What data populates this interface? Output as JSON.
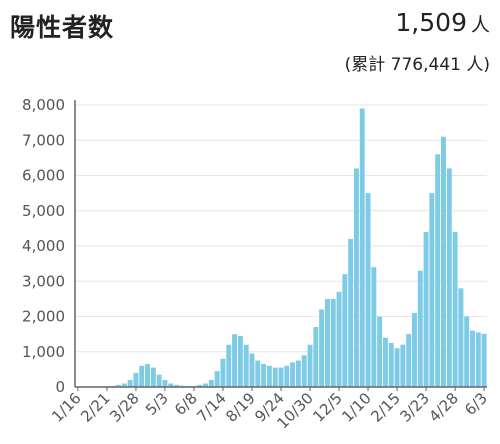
{
  "header": {
    "title": "陽性者数",
    "today_value": "1,509",
    "today_unit": "人",
    "cumulative": "(累計 776,441 人)"
  },
  "colors": {
    "bar": "#7ecbe6",
    "axis": "#666666",
    "grid": "#e6e6e6"
  },
  "chart_data": {
    "type": "bar",
    "title": "陽性者数",
    "xlabel": "",
    "ylabel": "",
    "ylim": [
      0,
      8000
    ],
    "grid": true,
    "yticks": [
      0,
      1000,
      2000,
      3000,
      4000,
      5000,
      6000,
      7000,
      8000
    ],
    "ytick_labels": [
      "0",
      "1,000",
      "2,000",
      "3,000",
      "4,000",
      "5,000",
      "6,000",
      "7,000",
      "8,000"
    ],
    "xtick_labels": [
      "1/16",
      "2/21",
      "3/28",
      "5/3",
      "6/8",
      "7/14",
      "8/19",
      "9/24",
      "10/30",
      "12/5",
      "1/10",
      "2/15",
      "3/23",
      "4/28",
      "6/3"
    ],
    "xtick_week_index": [
      0,
      5,
      10,
      15,
      20,
      25,
      30,
      35,
      40,
      45,
      50,
      55,
      60,
      65,
      70
    ],
    "period_start": "2020/1/16",
    "series": [
      {
        "name": "陽性者数",
        "bar_unit": "week",
        "values": [
          0,
          0,
          0,
          0,
          10,
          20,
          30,
          60,
          100,
          200,
          400,
          600,
          650,
          550,
          350,
          200,
          100,
          60,
          40,
          30,
          30,
          60,
          100,
          200,
          450,
          800,
          1200,
          1500,
          1450,
          1200,
          950,
          750,
          650,
          600,
          550,
          550,
          600,
          700,
          750,
          900,
          1200,
          1700,
          2200,
          2500,
          2500,
          2700,
          3200,
          4200,
          6200,
          7900,
          5500,
          3400,
          2000,
          1400,
          1250,
          1100,
          1200,
          1500,
          2100,
          3300,
          4400,
          5500,
          6600,
          7100,
          6200,
          4400,
          2800,
          2000,
          1600,
          1550,
          1509
        ]
      }
    ]
  }
}
